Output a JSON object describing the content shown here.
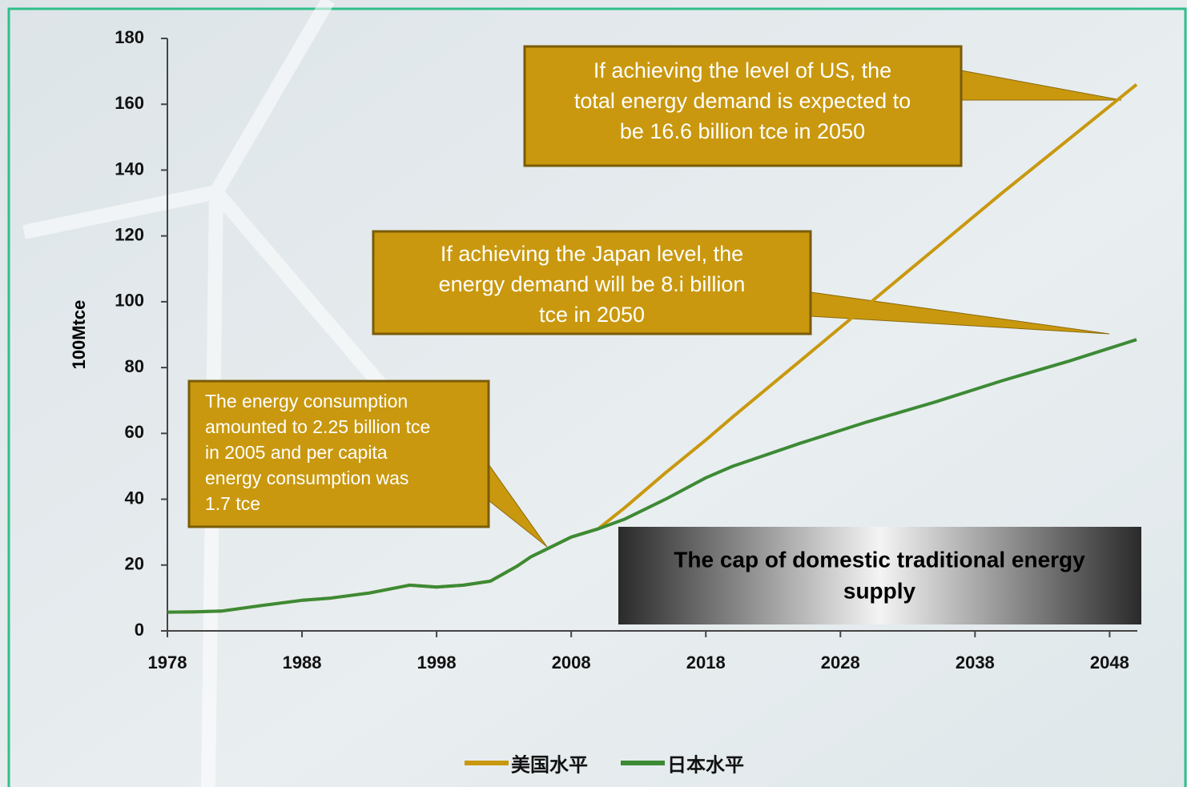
{
  "chart_data": {
    "type": "line",
    "ylabel": "100Mtce",
    "x": [
      1978,
      1980,
      1982,
      1985,
      1988,
      1990,
      1993,
      1996,
      1998,
      2000,
      2002,
      2004,
      2005,
      2006,
      2008,
      2010,
      2012,
      2015,
      2018,
      2020,
      2025,
      2030,
      2035,
      2040,
      2045,
      2050
    ],
    "series": [
      {
        "name": "美国水平",
        "color": "#c9980e",
        "values": [
          5.7,
          5.8,
          6.0,
          7.7,
          9.3,
          9.9,
          11.5,
          13.9,
          13.3,
          13.9,
          15.1,
          19.7,
          22.5,
          24.5,
          28.5,
          31,
          37.5,
          48,
          58,
          65,
          82,
          99,
          116,
          133,
          149.5,
          166
        ]
      },
      {
        "name": "日本水平",
        "color": "#3d8a35",
        "values": [
          5.7,
          5.8,
          6.0,
          7.7,
          9.3,
          9.9,
          11.5,
          13.9,
          13.3,
          13.9,
          15.1,
          19.7,
          22.5,
          24.5,
          28.5,
          31,
          34,
          40,
          46.5,
          50,
          57,
          63.5,
          69.5,
          76,
          82,
          88.5
        ]
      }
    ],
    "xlim": [
      1978,
      2050
    ],
    "xticks": [
      1978,
      1988,
      1998,
      2008,
      2018,
      2028,
      2038,
      2048
    ],
    "ylim": [
      0,
      180
    ],
    "yticks": [
      0,
      20,
      40,
      60,
      80,
      100,
      120,
      140,
      160,
      180
    ],
    "legend": "bottom",
    "annotations": [
      [
        "If achieving the level of US, the",
        "total energy demand is expected to",
        "be 16.6 billion tce in 2050"
      ],
      [
        "If achieving the Japan level, the",
        "energy demand  will be 8.i billion",
        "tce in 2050"
      ],
      [
        "The energy consumption",
        "amounted to 2.25 billion tce",
        "in 2005 and per capita",
        "energy  consumption was",
        "1.7 tce"
      ],
      [
        "The cap of domestic traditional energy",
        "supply"
      ]
    ]
  }
}
